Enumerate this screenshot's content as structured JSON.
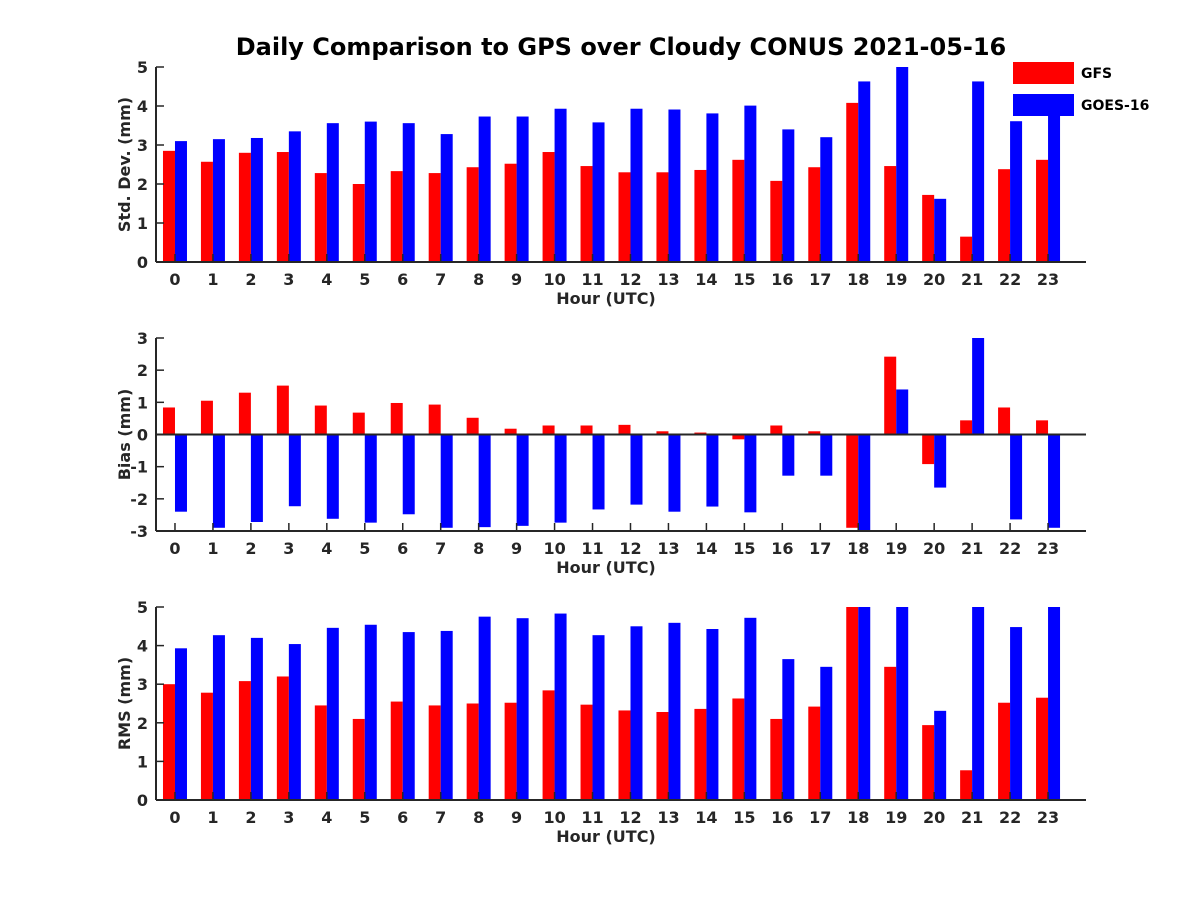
{
  "chart_data": {
    "title": "Daily Comparison to GPS over Cloudy CONUS 2021-05-16",
    "legend": {
      "placement": "top-right",
      "entries": [
        {
          "name": "GFS",
          "color": "#ff0000"
        },
        {
          "name": "GOES-16",
          "color": "#0000ff"
        }
      ]
    },
    "panels": [
      {
        "type": "bar",
        "xlabel": "Hour (UTC)",
        "ylabel": "Std. Dev. (mm)",
        "ylim": [
          0,
          5
        ],
        "yticks": [
          0,
          1,
          2,
          3,
          4,
          5
        ],
        "categories": [
          "0",
          "1",
          "2",
          "3",
          "4",
          "5",
          "6",
          "7",
          "8",
          "9",
          "10",
          "11",
          "12",
          "13",
          "14",
          "15",
          "16",
          "17",
          "18",
          "19",
          "20",
          "21",
          "22",
          "23"
        ],
        "series": [
          {
            "name": "GFS",
            "color": "#ff0000",
            "values": [
              2.85,
              2.57,
              2.8,
              2.82,
              2.28,
              2.0,
              2.33,
              2.28,
              2.43,
              2.52,
              2.82,
              2.46,
              2.3,
              2.3,
              2.36,
              2.62,
              2.08,
              2.43,
              4.08,
              2.46,
              1.72,
              0.65,
              2.38,
              2.62
            ]
          },
          {
            "name": "GOES-16",
            "color": "#0000ff",
            "values": [
              3.1,
              3.15,
              3.18,
              3.35,
              3.56,
              3.6,
              3.56,
              3.28,
              3.73,
              3.73,
              3.93,
              3.58,
              3.93,
              3.91,
              3.81,
              4.01,
              3.4,
              3.2,
              4.63,
              5.0,
              1.62,
              4.63,
              3.61,
              4.28
            ]
          }
        ]
      },
      {
        "type": "bar",
        "xlabel": "Hour (UTC)",
        "ylabel": "Bias (mm)",
        "ylim": [
          -3,
          3
        ],
        "yticks": [
          -3,
          -2,
          -1,
          0,
          1,
          2,
          3
        ],
        "categories": [
          "0",
          "1",
          "2",
          "3",
          "4",
          "5",
          "6",
          "7",
          "8",
          "9",
          "10",
          "11",
          "12",
          "13",
          "14",
          "15",
          "16",
          "17",
          "18",
          "19",
          "20",
          "21",
          "22",
          "23"
        ],
        "series": [
          {
            "name": "GFS",
            "color": "#ff0000",
            "values": [
              0.84,
              1.05,
              1.3,
              1.52,
              0.9,
              0.68,
              0.98,
              0.93,
              0.52,
              0.18,
              0.28,
              0.28,
              0.3,
              0.1,
              0.06,
              -0.15,
              0.28,
              0.1,
              -2.9,
              2.42,
              -0.92,
              0.44,
              0.84,
              0.44
            ]
          },
          {
            "name": "GOES-16",
            "color": "#0000ff",
            "values": [
              -2.4,
              -2.9,
              -2.72,
              -2.23,
              -2.62,
              -2.74,
              -2.48,
              -2.9,
              -2.88,
              -2.84,
              -2.74,
              -2.33,
              -2.18,
              -2.4,
              -2.24,
              -2.42,
              -1.28,
              -1.28,
              -3.0,
              1.4,
              -1.65,
              3.0,
              -2.64,
              -2.9
            ]
          }
        ]
      },
      {
        "type": "bar",
        "xlabel": "Hour (UTC)",
        "ylabel": "RMS (mm)",
        "ylim": [
          0,
          5
        ],
        "yticks": [
          0,
          1,
          2,
          3,
          4,
          5
        ],
        "categories": [
          "0",
          "1",
          "2",
          "3",
          "4",
          "5",
          "6",
          "7",
          "8",
          "9",
          "10",
          "11",
          "12",
          "13",
          "14",
          "15",
          "16",
          "17",
          "18",
          "19",
          "20",
          "21",
          "22",
          "23"
        ],
        "series": [
          {
            "name": "GFS",
            "color": "#ff0000",
            "values": [
              3.0,
              2.78,
              3.08,
              3.2,
              2.45,
              2.1,
              2.55,
              2.45,
              2.5,
              2.52,
              2.84,
              2.47,
              2.32,
              2.28,
              2.36,
              2.63,
              2.1,
              2.42,
              5.0,
              3.45,
              1.94,
              0.77,
              2.52,
              2.65
            ]
          },
          {
            "name": "GOES-16",
            "color": "#0000ff",
            "values": [
              3.93,
              4.27,
              4.2,
              4.04,
              4.46,
              4.54,
              4.35,
              4.38,
              4.75,
              4.71,
              4.83,
              4.27,
              4.5,
              4.59,
              4.43,
              4.72,
              3.65,
              3.45,
              5.0,
              5.0,
              2.31,
              5.0,
              4.48,
              5.0
            ]
          }
        ]
      }
    ]
  }
}
